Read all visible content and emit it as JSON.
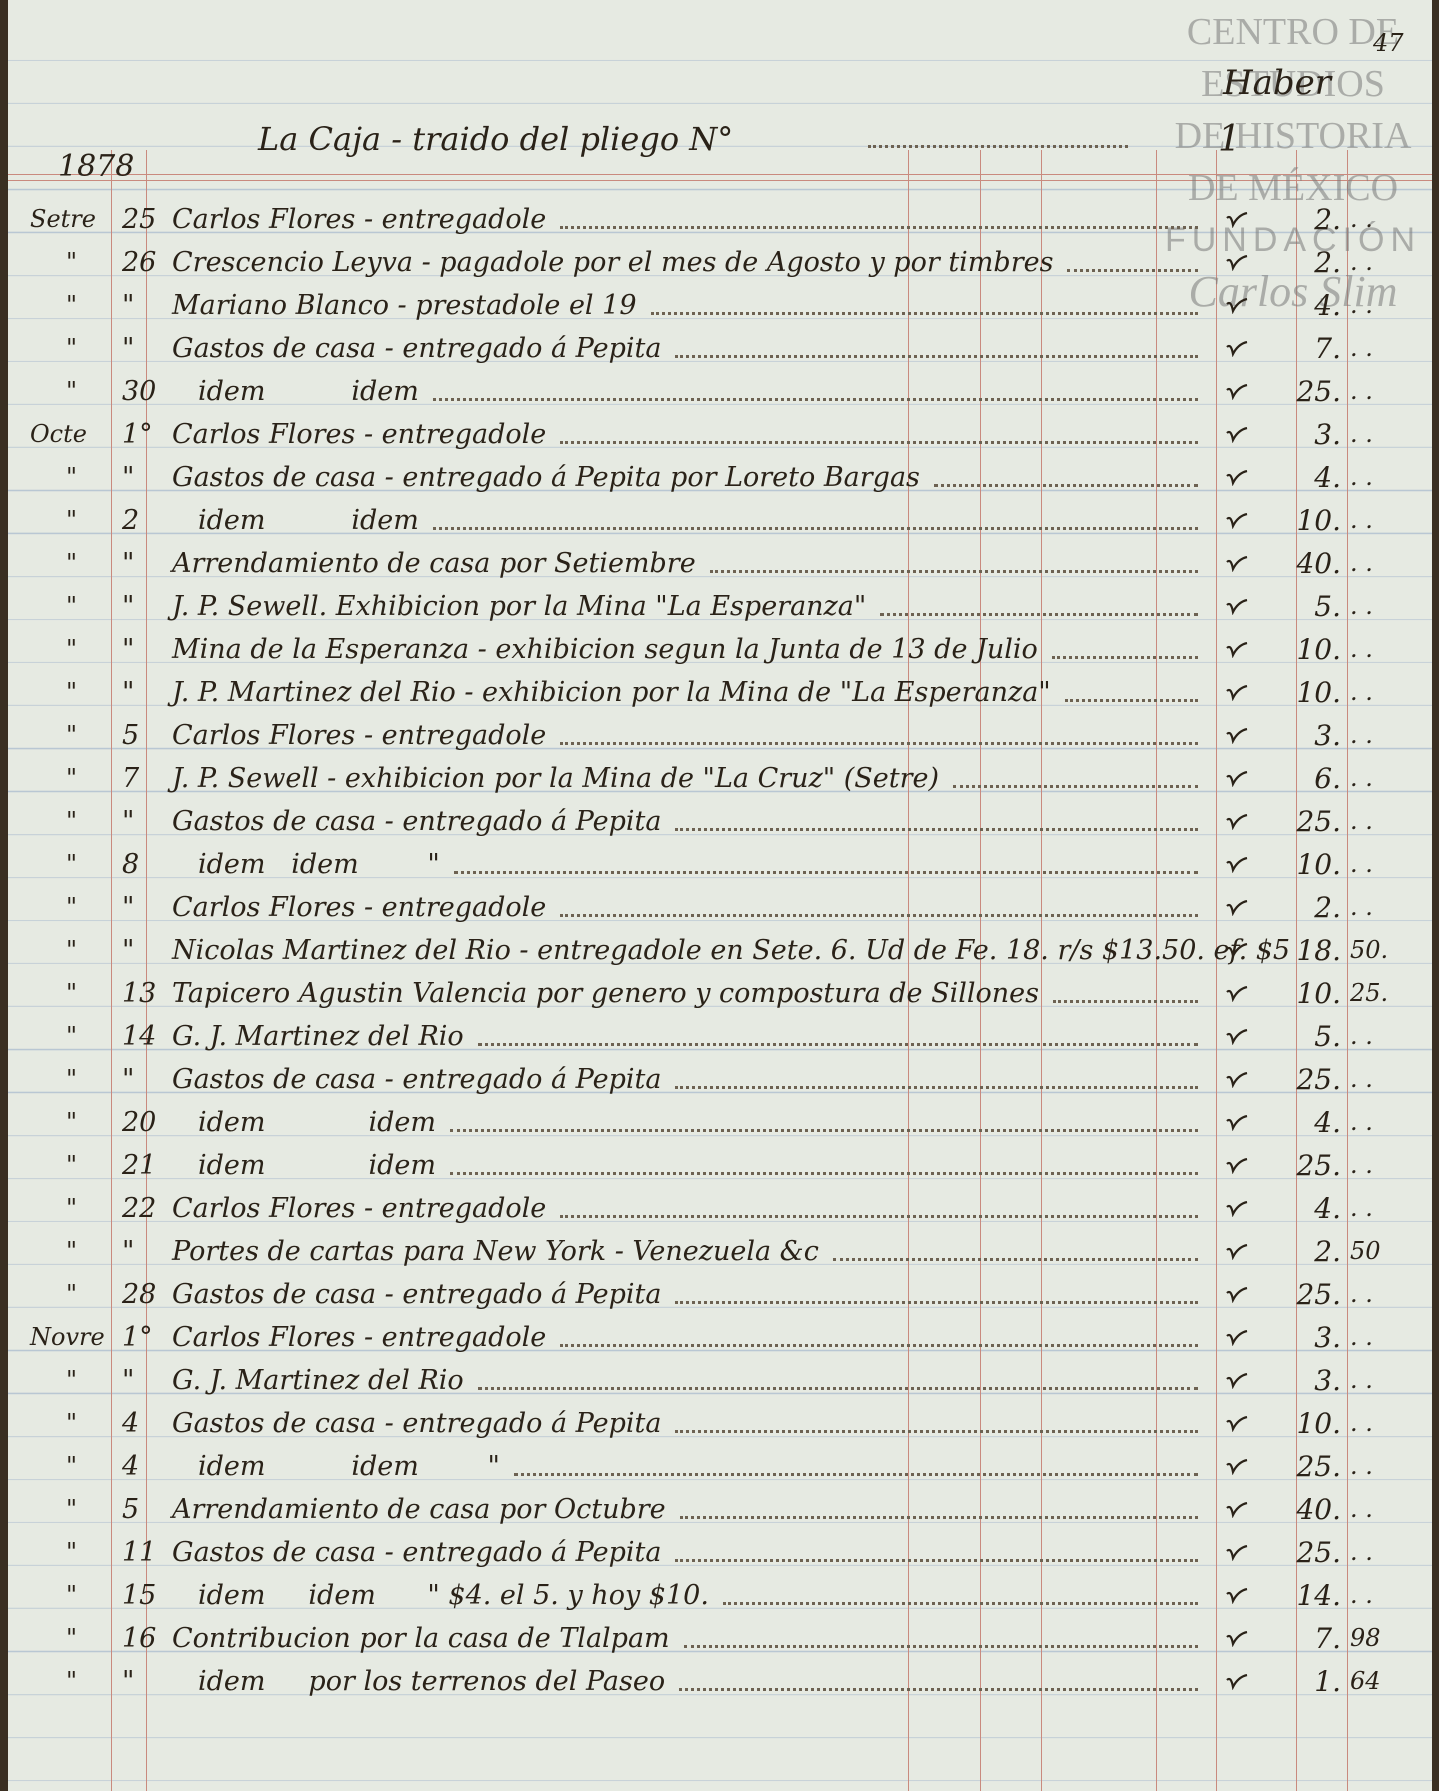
{
  "page_number": "47",
  "watermark": {
    "lines": [
      "CENTRO DE",
      "ESTUDIOS",
      "DE HISTORIA",
      "DE MÉXICO"
    ],
    "foundation": "FUNDACIÓN",
    "signature": "Carlos Slim"
  },
  "header": {
    "year": "1878",
    "title": "La Caja - traido del pliego N°",
    "folio": "1",
    "column": "Haber"
  },
  "rows": [
    {
      "month": "Setre",
      "day": "25",
      "text": "Carlos Flores - entregadole",
      "pesos": "2.",
      "cents": ". ."
    },
    {
      "month": "\"",
      "day": "26",
      "text": "Crescencio Leyva - pagadole por el mes de Agosto y por timbres",
      "pesos": "2.",
      "cents": ". ."
    },
    {
      "month": "\"",
      "day": "\"",
      "text": "Mariano Blanco - prestadole el 19",
      "pesos": "4.",
      "cents": ". ."
    },
    {
      "month": "\"",
      "day": "\"",
      "text": "Gastos de casa - entregado á Pepita",
      "pesos": "7.",
      "cents": ". ."
    },
    {
      "month": "\"",
      "day": "30",
      "text": "idem          idem",
      "pesos": "25.",
      "cents": ". ."
    },
    {
      "month": "Octe",
      "day": "1°",
      "text": "Carlos Flores - entregadole",
      "pesos": "3.",
      "cents": ". ."
    },
    {
      "month": "\"",
      "day": "\"",
      "text": "Gastos de casa - entregado á Pepita por Loreto Bargas",
      "pesos": "4.",
      "cents": ". ."
    },
    {
      "month": "\"",
      "day": "2",
      "text": "idem          idem",
      "pesos": "10.",
      "cents": ". ."
    },
    {
      "month": "\"",
      "day": "\"",
      "text": "Arrendamiento de casa por Setiembre",
      "pesos": "40.",
      "cents": ". ."
    },
    {
      "month": "\"",
      "day": "\"",
      "text": "J. P. Sewell. Exhibicion por la Mina \"La Esperanza\"",
      "pesos": "5.",
      "cents": ". ."
    },
    {
      "month": "\"",
      "day": "\"",
      "text": "Mina de la Esperanza - exhibicion segun la Junta de 13 de Julio",
      "pesos": "10.",
      "cents": ". ."
    },
    {
      "month": "\"",
      "day": "\"",
      "text": "J. P. Martinez del Rio - exhibicion por la Mina de \"La Esperanza\"",
      "pesos": "10.",
      "cents": ". ."
    },
    {
      "month": "\"",
      "day": "5",
      "text": "Carlos Flores - entregadole",
      "pesos": "3.",
      "cents": ". ."
    },
    {
      "month": "\"",
      "day": "7",
      "text": "J. P. Sewell - exhibicion por la Mina de \"La Cruz\" (Setre)",
      "pesos": "6.",
      "cents": ". ."
    },
    {
      "month": "\"",
      "day": "\"",
      "text": "Gastos de casa - entregado á Pepita",
      "pesos": "25.",
      "cents": ". ."
    },
    {
      "month": "\"",
      "day": "8",
      "text": "idem   idem        \"",
      "pesos": "10.",
      "cents": ". ."
    },
    {
      "month": "\"",
      "day": "\"",
      "text": "Carlos Flores - entregadole",
      "pesos": "2.",
      "cents": ". ."
    },
    {
      "month": "\"",
      "day": "\"",
      "text": "Nicolas Martinez del Rio - entregadole en Sete. 6. Ud de Fe. 18. r/s $13.50. ef. $5",
      "pesos": "18.",
      "cents": "50."
    },
    {
      "month": "\"",
      "day": "13",
      "text": "Tapicero Agustin Valencia por genero y compostura de Sillones",
      "pesos": "10.",
      "cents": "25."
    },
    {
      "month": "\"",
      "day": "14",
      "text": "G. J. Martinez del Rio",
      "pesos": "5.",
      "cents": ". ."
    },
    {
      "month": "\"",
      "day": "\"",
      "text": "Gastos de casa - entregado á Pepita",
      "pesos": "25.",
      "cents": ". ."
    },
    {
      "month": "\"",
      "day": "20",
      "text": "idem            idem",
      "pesos": "4.",
      "cents": ". ."
    },
    {
      "month": "\"",
      "day": "21",
      "text": "idem            idem",
      "pesos": "25.",
      "cents": ". ."
    },
    {
      "month": "\"",
      "day": "22",
      "text": "Carlos Flores - entregadole",
      "pesos": "4.",
      "cents": ". ."
    },
    {
      "month": "\"",
      "day": "\"",
      "text": "Portes de cartas para New York - Venezuela &c",
      "pesos": "2.",
      "cents": "50"
    },
    {
      "month": "\"",
      "day": "28",
      "text": "Gastos de casa - entregado á Pepita",
      "pesos": "25.",
      "cents": ". ."
    },
    {
      "month": "Novre",
      "day": "1°",
      "text": "Carlos Flores - entregadole",
      "pesos": "3.",
      "cents": ". ."
    },
    {
      "month": "\"",
      "day": "\"",
      "text": "G. J. Martinez del Rio",
      "pesos": "3.",
      "cents": ". ."
    },
    {
      "month": "\"",
      "day": "4",
      "text": "Gastos de casa - entregado á Pepita",
      "pesos": "10.",
      "cents": ". ."
    },
    {
      "month": "\"",
      "day": "4",
      "text": "idem          idem        \"",
      "pesos": "25.",
      "cents": ". ."
    },
    {
      "month": "\"",
      "day": "5",
      "text": "Arrendamiento de casa por Octubre",
      "pesos": "40.",
      "cents": ". ."
    },
    {
      "month": "\"",
      "day": "11",
      "text": "Gastos de casa - entregado á Pepita",
      "pesos": "25.",
      "cents": ". ."
    },
    {
      "month": "\"",
      "day": "15",
      "text": "idem     idem      \" $4. el 5. y hoy $10.",
      "pesos": "14.",
      "cents": ". ."
    },
    {
      "month": "\"",
      "day": "16",
      "text": "Contribucion por la casa de Tlalpam",
      "pesos": "7.",
      "cents": "98"
    },
    {
      "month": "\"",
      "day": "\"",
      "text": "idem     por los terrenos del Paseo",
      "pesos": "1.",
      "cents": "64"
    }
  ]
}
